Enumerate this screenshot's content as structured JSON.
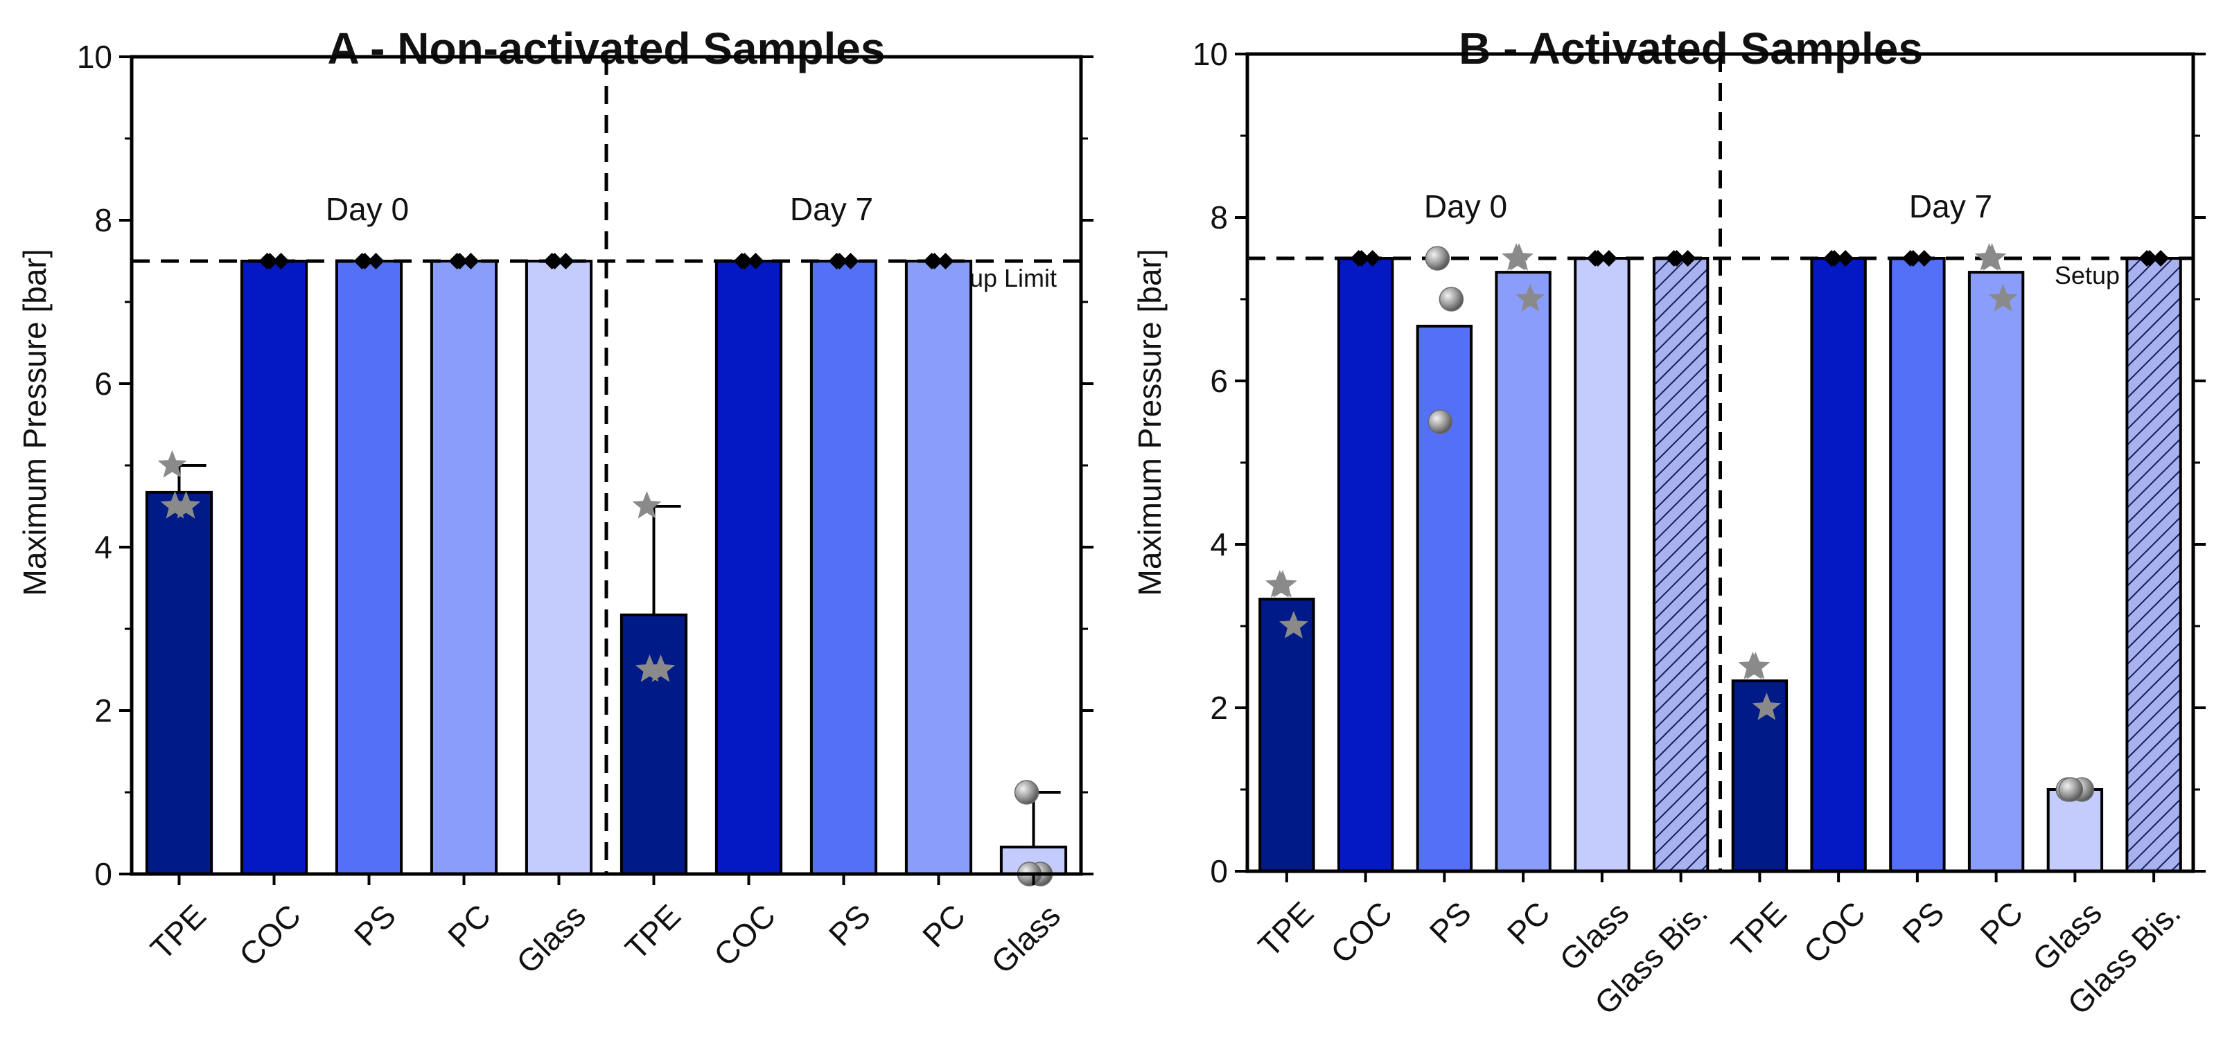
{
  "chart_data": [
    {
      "type": "bar",
      "title": "A - Non-activated Samples",
      "ylabel": "Maximum Pressure [bar]",
      "xlabel": "",
      "ylim": [
        0,
        10
      ],
      "yticks": [
        0,
        2,
        4,
        6,
        8,
        10
      ],
      "groups": [
        {
          "label": "Day 0",
          "categories": [
            "TPE",
            "COC",
            "PS",
            "PC",
            "Glass"
          ],
          "values": [
            4.67,
            7.5,
            7.5,
            7.5,
            7.5
          ],
          "error": [
            0.33,
            0,
            0,
            0,
            0
          ]
        },
        {
          "label": "Day 7",
          "categories": [
            "TPE",
            "COC",
            "PS",
            "PC",
            "Glass"
          ],
          "values": [
            3.17,
            7.5,
            7.5,
            7.5,
            0.33
          ],
          "error": [
            1.33,
            0,
            0,
            0,
            0.67
          ]
        }
      ],
      "points": [
        {
          "bar": 0,
          "marker": "star",
          "values": [
            5.0,
            4.5,
            4.5
          ]
        },
        {
          "bar": 1,
          "marker": "diamond",
          "values": [
            7.5,
            7.5,
            7.5
          ]
        },
        {
          "bar": 2,
          "marker": "diamond",
          "values": [
            7.5,
            7.5,
            7.5
          ]
        },
        {
          "bar": 3,
          "marker": "diamond",
          "values": [
            7.5,
            7.5,
            7.5
          ]
        },
        {
          "bar": 4,
          "marker": "diamond",
          "values": [
            7.5,
            7.5,
            7.5
          ]
        },
        {
          "bar": 5,
          "marker": "star",
          "values": [
            4.5,
            2.5,
            2.5
          ]
        },
        {
          "bar": 6,
          "marker": "diamond",
          "values": [
            7.5,
            7.5,
            7.5
          ]
        },
        {
          "bar": 7,
          "marker": "diamond",
          "values": [
            7.5,
            7.5,
            7.5
          ]
        },
        {
          "bar": 8,
          "marker": "diamond",
          "values": [
            7.5,
            7.5,
            7.5
          ]
        },
        {
          "bar": 9,
          "marker": "sphere",
          "values": [
            1.0,
            0.0,
            0.0
          ]
        }
      ],
      "setup_limit": 7.5,
      "setup_limit_label": "Setup Limit"
    },
    {
      "type": "bar",
      "title": "B - Activated Samples",
      "ylabel": "Maximum Pressure [bar]",
      "xlabel": "",
      "ylim": [
        0,
        10
      ],
      "yticks": [
        0,
        2,
        4,
        6,
        8,
        10
      ],
      "groups": [
        {
          "label": "Day 0",
          "categories": [
            "TPE",
            "COC",
            "PS",
            "PC",
            "Glass",
            "Glass Bis."
          ],
          "values": [
            3.33,
            7.5,
            6.67,
            7.33,
            7.5,
            7.5
          ],
          "error": [
            0,
            0,
            0,
            0,
            0,
            0
          ]
        },
        {
          "label": "Day 7",
          "categories": [
            "TPE",
            "COC",
            "PS",
            "PC",
            "Glass",
            "Glass Bis."
          ],
          "values": [
            2.33,
            7.5,
            7.5,
            7.33,
            1.0,
            7.5
          ],
          "error": [
            0,
            0,
            0,
            0,
            0,
            0
          ]
        }
      ],
      "points": [
        {
          "bar": 0,
          "marker": "star",
          "values": [
            3.5,
            3.0,
            3.5
          ]
        },
        {
          "bar": 1,
          "marker": "diamond",
          "values": [
            7.5,
            7.5,
            7.5
          ]
        },
        {
          "bar": 2,
          "marker": "sphere",
          "values": [
            7.5,
            7.0,
            5.5
          ]
        },
        {
          "bar": 3,
          "marker": "star",
          "values": [
            7.5,
            7.0,
            7.5
          ]
        },
        {
          "bar": 4,
          "marker": "diamond",
          "values": [
            7.5,
            7.5,
            7.5
          ]
        },
        {
          "bar": 5,
          "marker": "diamond",
          "values": [
            7.5,
            7.5,
            7.5
          ]
        },
        {
          "bar": 6,
          "marker": "star",
          "values": [
            2.5,
            2.0,
            2.5
          ]
        },
        {
          "bar": 7,
          "marker": "diamond",
          "values": [
            7.5,
            7.5,
            7.5
          ]
        },
        {
          "bar": 8,
          "marker": "diamond",
          "values": [
            7.5,
            7.5,
            7.5
          ]
        },
        {
          "bar": 9,
          "marker": "star",
          "values": [
            7.5,
            7.0,
            7.5
          ]
        },
        {
          "bar": 10,
          "marker": "sphere",
          "values": [
            1.0,
            1.0,
            1.0
          ]
        },
        {
          "bar": 11,
          "marker": "diamond",
          "values": [
            7.5,
            7.5,
            7.5
          ]
        }
      ],
      "setup_limit": 7.5,
      "setup_limit_label": "Setup Limit"
    }
  ],
  "colors": {
    "TPE": "#001a87",
    "COC": "#0419c4",
    "PS": "#5470f6",
    "PC": "#8b9dfb",
    "Glass": "#c4ccfd",
    "Glass Bis.": "#a8b2ee",
    "marker": "#8a8a8a",
    "diamond": "#000000",
    "axis": "#111111"
  }
}
